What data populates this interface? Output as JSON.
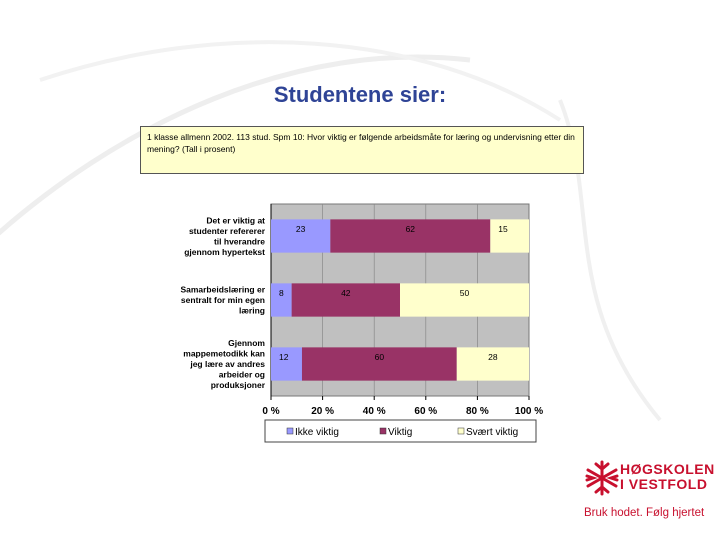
{
  "slide": {
    "title": "Studentene sier:",
    "description": "1 klasse allmenn 2002. 113 stud. Spm 10: Hvor viktig er følgende arbeidsmåte for læring og undervisning etter din mening? (Tall i prosent)"
  },
  "logo": {
    "line1": "HØGSKOLEN",
    "line2": "I VESTFOLD",
    "tagline": "Bruk hodet. Følg hjertet",
    "color": "#c8102e"
  },
  "chart_data": {
    "type": "bar",
    "orientation": "horizontal",
    "stacked": "100%",
    "categories": [
      [
        "Det er viktig at",
        "studenter refererer",
        "til hverandre",
        "gjennom hypertekst"
      ],
      [
        "Samarbeidslæring er",
        "sentralt for min egen",
        "læring"
      ],
      [
        "Gjennom",
        "mappemetodikk kan",
        "jeg lære av andres",
        "arbeider og",
        "produksjoner"
      ]
    ],
    "series": [
      {
        "name": "Ikke viktig",
        "values": [
          23,
          8,
          12
        ],
        "color": "#9999ff"
      },
      {
        "name": "Viktig",
        "values": [
          62,
          42,
          60
        ],
        "color": "#993366"
      },
      {
        "name": "Svært viktig",
        "values": [
          15,
          50,
          28
        ],
        "color": "#ffffcc"
      }
    ],
    "xlim": [
      0,
      100
    ],
    "xticks": [
      "0 %",
      "20 %",
      "40 %",
      "60 %",
      "80 %",
      "100 %"
    ],
    "legend_position": "bottom",
    "background": "#c0c0c0",
    "grid": true
  }
}
